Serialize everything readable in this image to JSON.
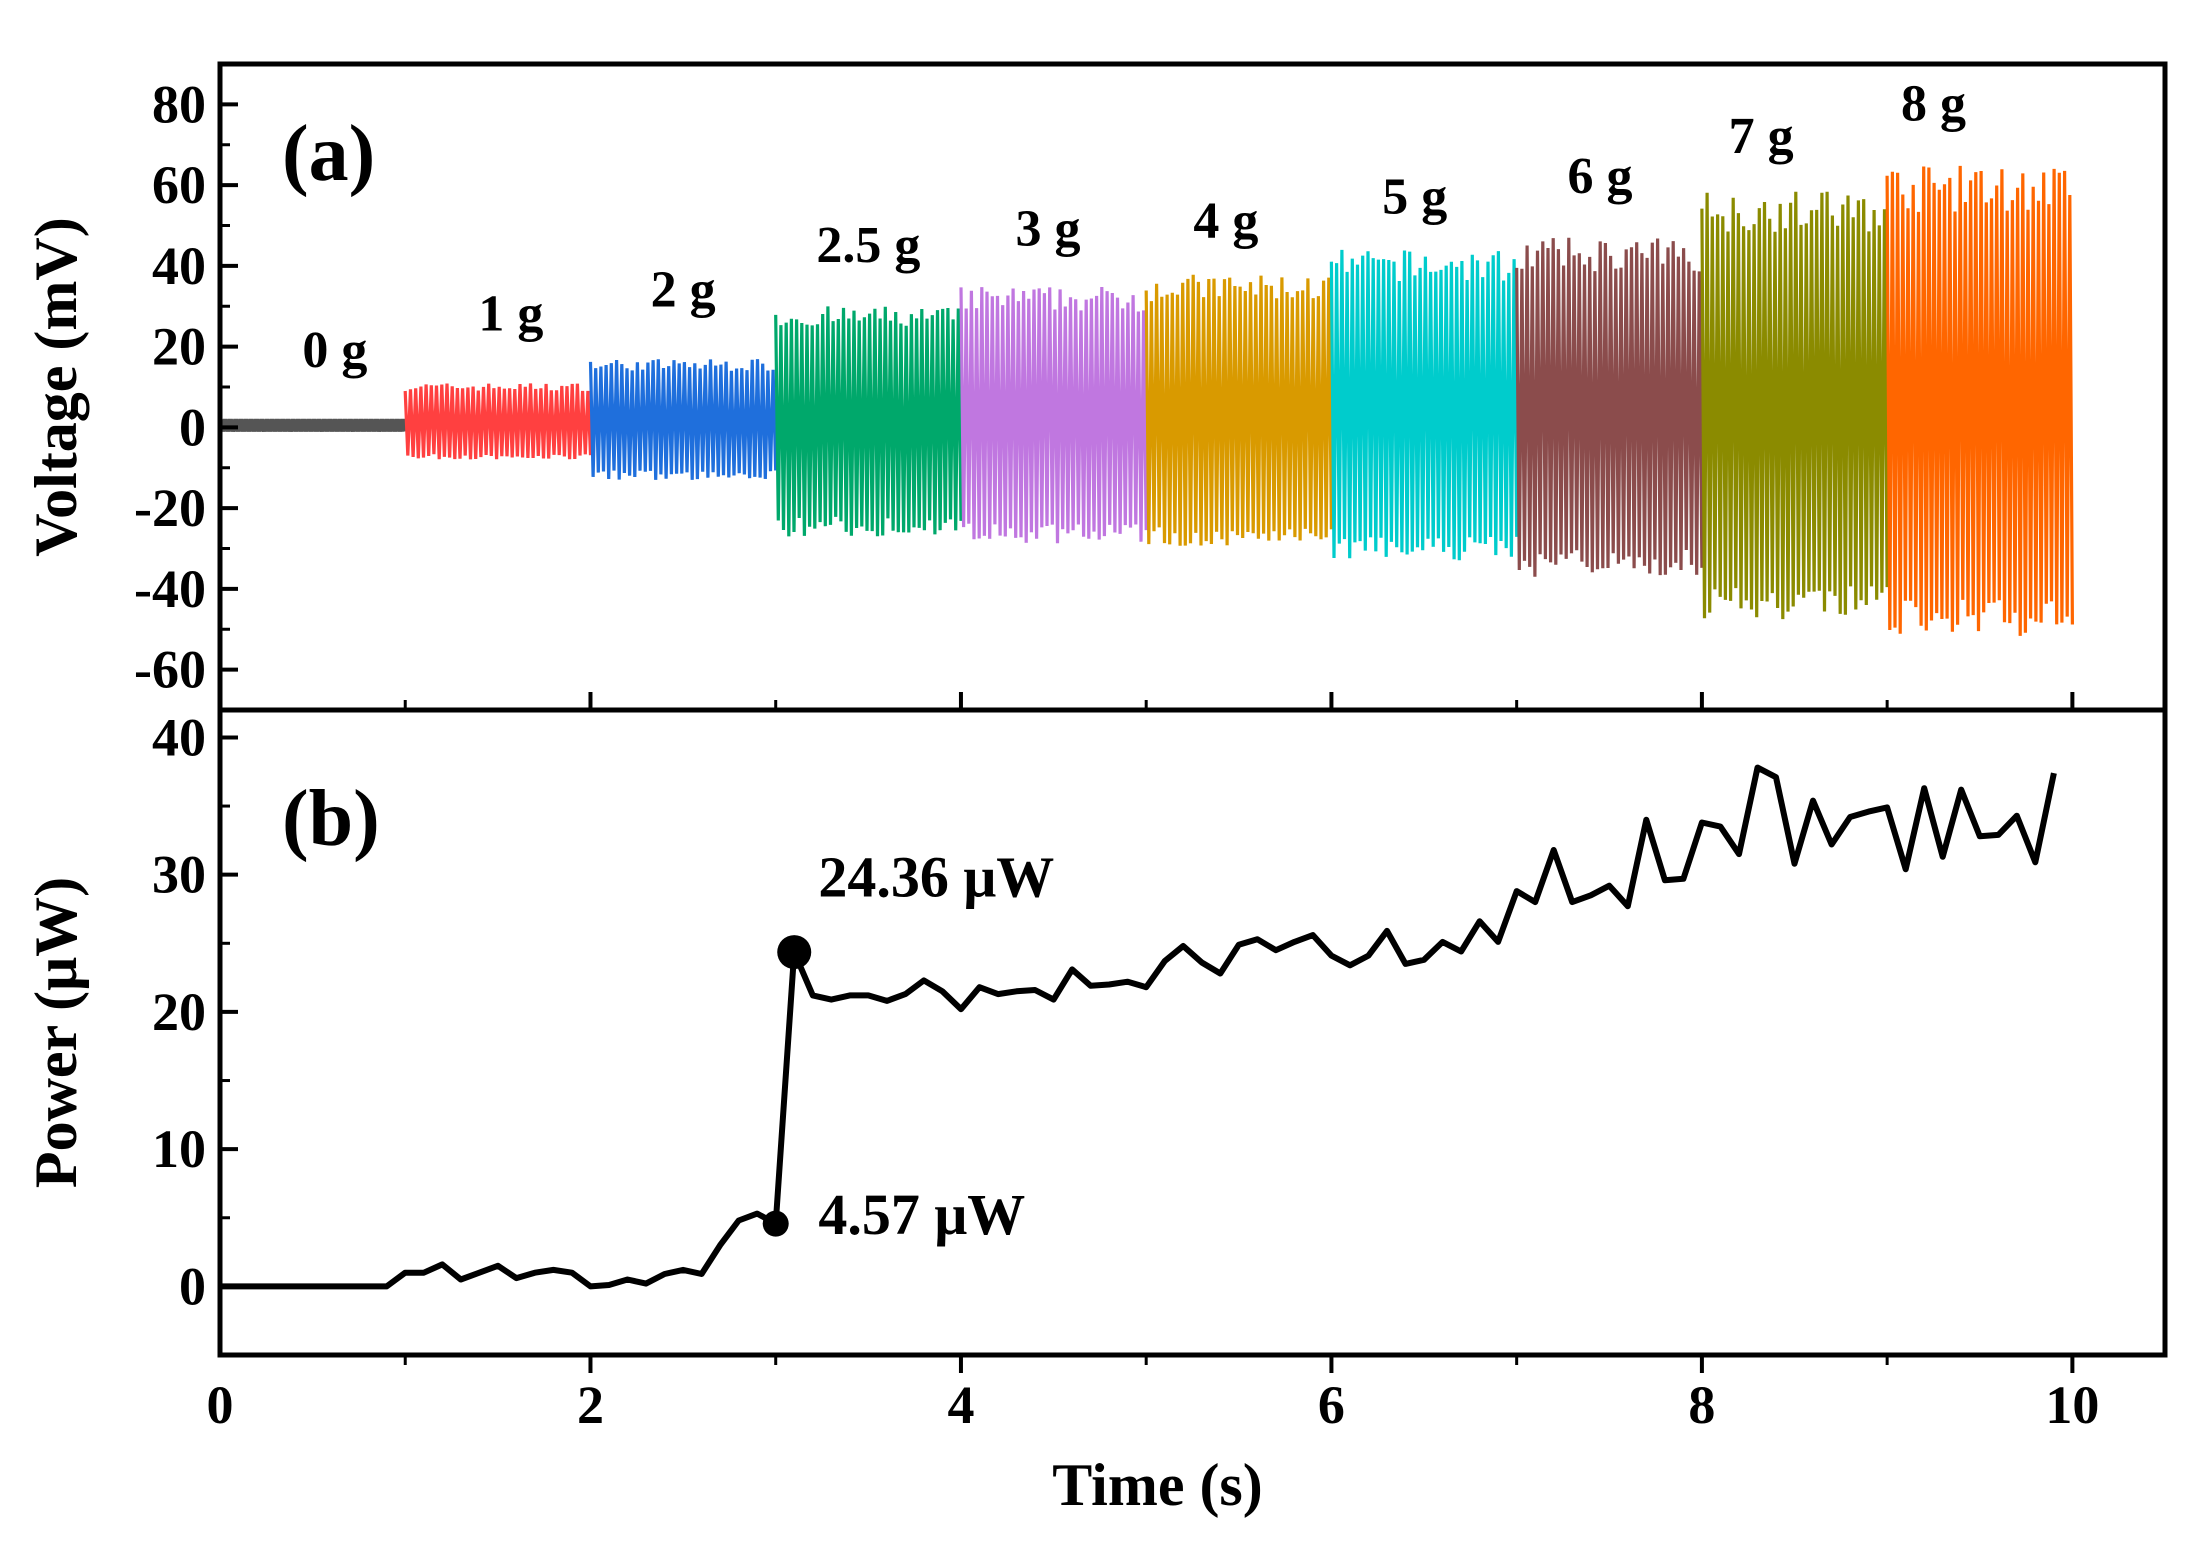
{
  "chart_data": [
    {
      "type": "line",
      "panel_label": "(a)",
      "ylabel": "Voltage (mV)",
      "xlabel": "",
      "xlim": [
        0,
        10.5
      ],
      "ylim": [
        -70,
        90
      ],
      "x_ticks": [
        0,
        2,
        4,
        6,
        8,
        10
      ],
      "y_ticks": [
        {
          "value": 80,
          "label": "80"
        },
        {
          "value": 60,
          "label": "60"
        },
        {
          "value": 40,
          "label": "40"
        },
        {
          "value": 20,
          "label": "20"
        },
        {
          "value": 0,
          "label": "0"
        },
        {
          "value": -20,
          "label": "-20"
        },
        {
          "value": -40,
          "label": "-40"
        },
        {
          "value": -60,
          "label": "-60"
        }
      ],
      "series": [
        {
          "label": "0 g",
          "x_start": 0,
          "x_end": 1,
          "v_min": -1,
          "v_max": 2,
          "color": "#555555",
          "label_pos": [
            0.62,
            15
          ]
        },
        {
          "label": "1 g",
          "x_start": 1,
          "x_end": 2,
          "v_min": -8,
          "v_max": 11,
          "color": "#ff4040",
          "label_pos": [
            1.57,
            24
          ]
        },
        {
          "label": "2 g",
          "x_start": 2,
          "x_end": 3,
          "v_min": -13,
          "v_max": 17,
          "color": "#1f6fdc",
          "label_pos": [
            2.5,
            30
          ]
        },
        {
          "label": "2.5 g",
          "x_start": 3,
          "x_end": 4,
          "v_min": -27,
          "v_max": 30,
          "color": "#00a86b",
          "label_pos": [
            3.5,
            41
          ]
        },
        {
          "label": "3 g",
          "x_start": 4,
          "x_end": 5,
          "v_min": -29,
          "v_max": 35,
          "color": "#c077e0",
          "label_pos": [
            4.47,
            45
          ]
        },
        {
          "label": "4 g",
          "x_start": 5,
          "x_end": 6,
          "v_min": -30,
          "v_max": 38,
          "color": "#d99a00",
          "label_pos": [
            5.43,
            47
          ]
        },
        {
          "label": "5 g",
          "x_start": 6,
          "x_end": 7,
          "v_min": -33,
          "v_max": 44,
          "color": "#00cccc",
          "label_pos": [
            6.45,
            53
          ]
        },
        {
          "label": "6 g",
          "x_start": 7,
          "x_end": 8,
          "v_min": -37,
          "v_max": 47,
          "color": "#8b4c4c",
          "label_pos": [
            7.45,
            58
          ]
        },
        {
          "label": "7 g",
          "x_start": 8,
          "x_end": 9,
          "v_min": -48,
          "v_max": 59,
          "color": "#8b8b00",
          "label_pos": [
            8.32,
            68
          ]
        },
        {
          "label": "8 g",
          "x_start": 9,
          "x_end": 10,
          "v_min": -52,
          "v_max": 65,
          "color": "#ff6600",
          "label_pos": [
            9.25,
            76
          ]
        }
      ]
    },
    {
      "type": "line",
      "panel_label": "(b)",
      "ylabel": "Power (μW)",
      "xlabel": "Time (s)",
      "xlim": [
        0,
        10.5
      ],
      "ylim": [
        -5,
        42
      ],
      "x_ticks": [
        {
          "value": 0,
          "label": "0"
        },
        {
          "value": 2,
          "label": "2"
        },
        {
          "value": 4,
          "label": "4"
        },
        {
          "value": 6,
          "label": "6"
        },
        {
          "value": 8,
          "label": "8"
        },
        {
          "value": 10,
          "label": "10"
        }
      ],
      "y_ticks": [
        {
          "value": 40,
          "label": "40"
        },
        {
          "value": 30,
          "label": "30"
        },
        {
          "value": 20,
          "label": "20"
        },
        {
          "value": 10,
          "label": "10"
        },
        {
          "value": 0,
          "label": "0"
        }
      ],
      "series": [
        {
          "color": "#000000",
          "x": [
            0,
            0.3,
            0.6,
            0.9,
            1.0,
            1.1,
            1.2,
            1.3,
            1.4,
            1.5,
            1.6,
            1.7,
            1.8,
            1.9,
            2.0,
            2.1,
            2.2,
            2.3,
            2.4,
            2.5,
            2.6,
            2.7,
            2.8,
            2.9,
            3.0,
            3.1,
            3.2,
            3.3,
            3.4,
            3.5,
            3.6,
            3.7,
            3.8,
            3.9,
            4.0,
            4.1,
            4.2,
            4.3,
            4.4,
            4.5,
            4.6,
            4.7,
            4.8,
            4.9,
            5.0,
            5.1,
            5.2,
            5.3,
            5.4,
            5.5,
            5.6,
            5.7,
            5.8,
            5.9,
            6.0,
            6.1,
            6.2,
            6.3,
            6.4,
            6.5,
            6.6,
            6.7,
            6.8,
            6.9,
            7.0,
            7.1,
            7.2,
            7.3,
            7.4,
            7.5,
            7.6,
            7.7,
            7.8,
            7.9,
            8.0,
            8.1,
            8.2,
            8.3,
            8.4,
            8.5,
            8.6,
            8.7,
            8.8,
            8.9,
            9.0,
            9.1,
            9.2,
            9.3,
            9.4,
            9.5,
            9.6,
            9.7,
            9.8,
            9.9
          ],
          "y": [
            0,
            0,
            0,
            0,
            1.0,
            1.0,
            1.6,
            0.5,
            1.0,
            1.5,
            0.6,
            1.0,
            1.2,
            1.0,
            0,
            0.1,
            0.5,
            0.2,
            0.9,
            1.2,
            0.9,
            3.0,
            4.8,
            5.3,
            4.57,
            24.36,
            21.2,
            20.9,
            21.2,
            21.2,
            20.8,
            21.3,
            22.3,
            21.5,
            20.2,
            21.8,
            21.3,
            21.5,
            21.6,
            20.9,
            23.1,
            21.9,
            22.0,
            22.2,
            21.8,
            23.7,
            24.8,
            23.6,
            22.8,
            24.9,
            25.3,
            24.5,
            25.1,
            25.6,
            24.1,
            23.4,
            24.1,
            25.9,
            23.5,
            23.8,
            25.1,
            24.4,
            26.6,
            25.1,
            28.8,
            28.0,
            31.8,
            28.0,
            28.5,
            29.2,
            27.7,
            34.0,
            29.6,
            29.7,
            33.8,
            33.5,
            31.5,
            37.8,
            37.1,
            30.8,
            35.4,
            32.2,
            34.2,
            34.6,
            34.9,
            30.4,
            36.3,
            31.3,
            36.2,
            32.8,
            32.9,
            34.3,
            30.9,
            37.4
          ]
        }
      ],
      "annotations": [
        {
          "text": "24.36 μW",
          "x": 3.1,
          "y": 24.36,
          "text_x": 3.23,
          "text_y": 28.4
        },
        {
          "text": "4.57 μW",
          "x": 3.0,
          "y": 4.57,
          "text_x": 3.23,
          "text_y": 3.8
        }
      ]
    }
  ]
}
